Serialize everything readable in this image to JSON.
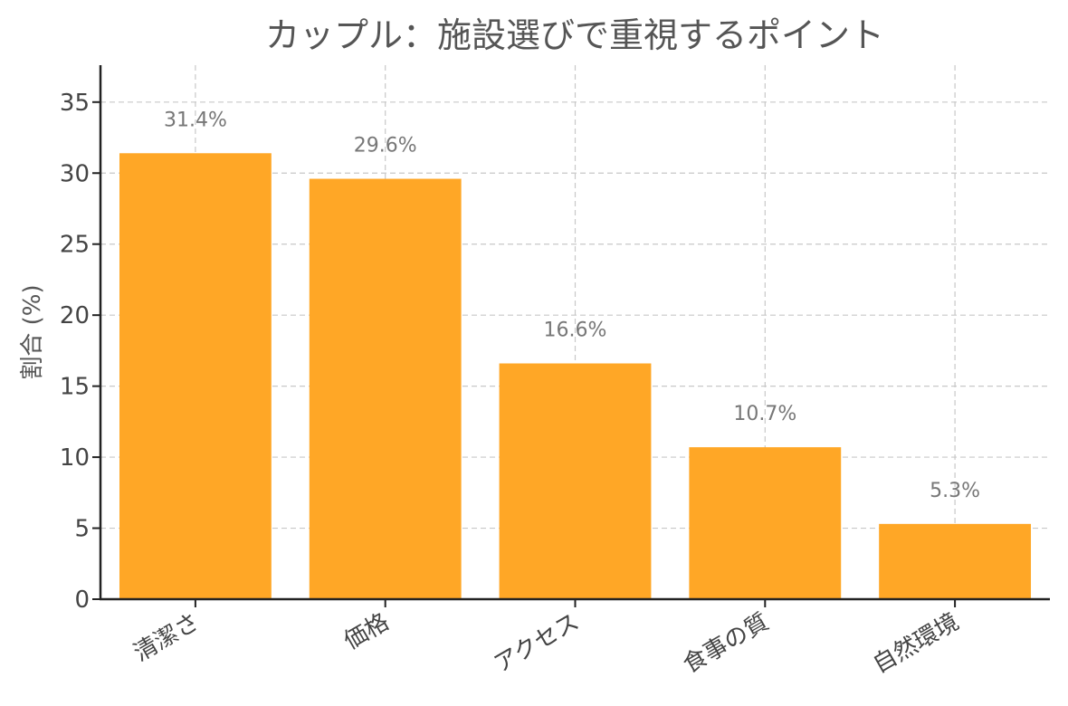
{
  "chart_data": {
    "type": "bar",
    "title": "カップル：施設選びで重視するポイント",
    "xlabel": "",
    "ylabel": "割合 (%)",
    "categories": [
      "清潔さ",
      "価格",
      "アクセス",
      "食事の質",
      "自然環境"
    ],
    "values": [
      31.4,
      29.6,
      16.6,
      10.7,
      5.3
    ],
    "data_labels": [
      "31.4%",
      "29.6%",
      "16.6%",
      "10.7%",
      "5.3%"
    ],
    "ylim": [
      0,
      37.6
    ],
    "yticks": [
      0,
      5,
      10,
      15,
      20,
      25,
      30,
      35
    ],
    "grid": true,
    "bar_color": "#FFA726"
  }
}
